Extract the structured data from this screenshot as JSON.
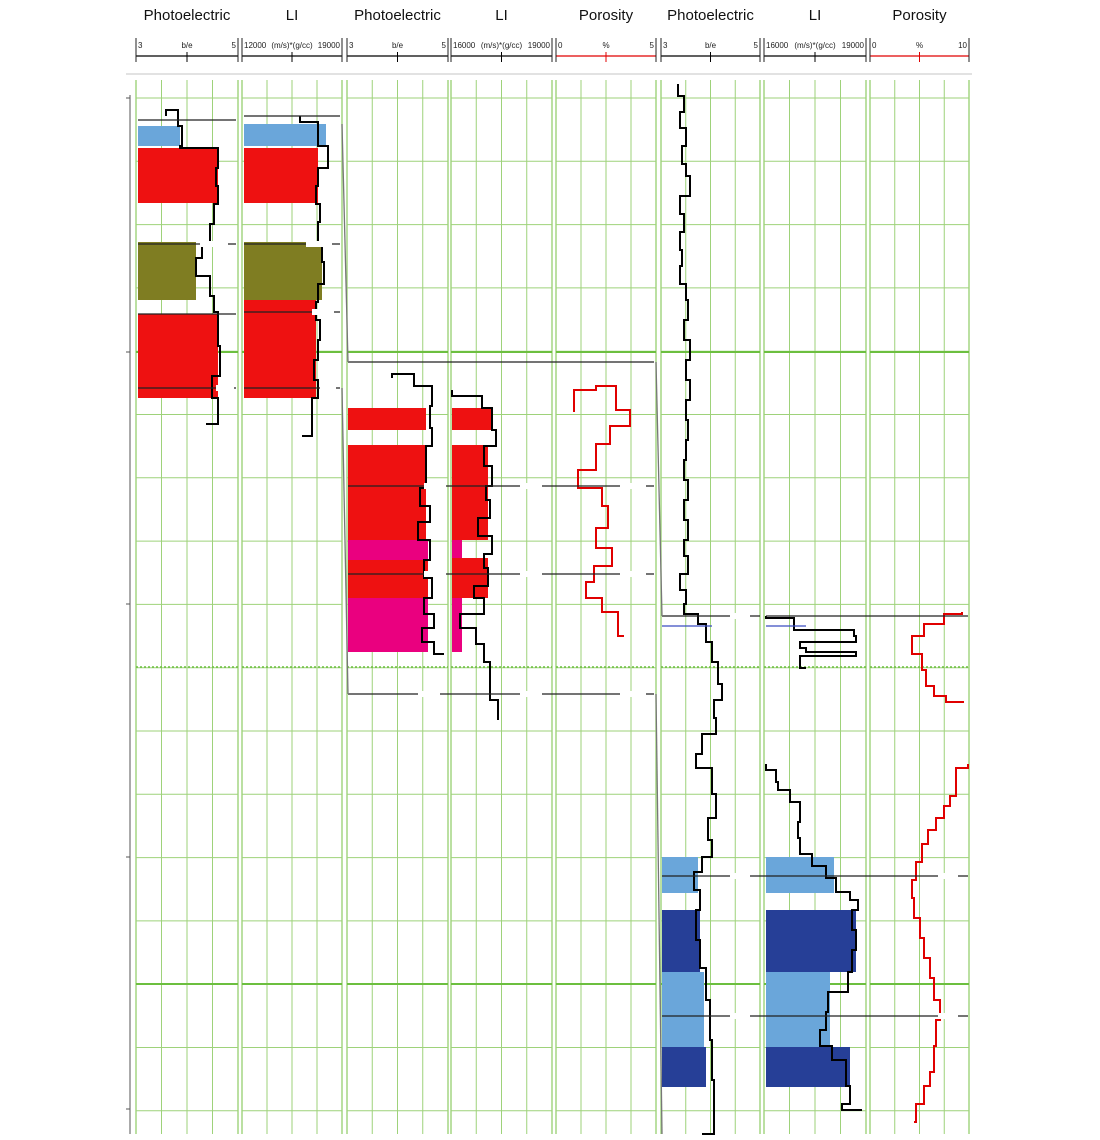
{
  "chart_data": {
    "type": "well-log-correlation",
    "grid": true,
    "wells": [
      {
        "id": "well-1",
        "tracks": [
          {
            "title": "Photoelectric",
            "curve_color": "#000000",
            "scale": {
              "min": "3",
              "unit": "b/e",
              "max": "5"
            }
          },
          {
            "title": "LI",
            "curve_color": "#000000",
            "scale": {
              "min": "12000",
              "unit": "(m/s)*(g/cc)",
              "max": "19000"
            }
          }
        ]
      },
      {
        "id": "well-2",
        "tracks": [
          {
            "title": "Photoelectric",
            "curve_color": "#000000",
            "scale": {
              "min": "3",
              "unit": "b/e",
              "max": "5"
            }
          },
          {
            "title": "LI",
            "curve_color": "#000000",
            "scale": {
              "min": "16000",
              "unit": "(m/s)*(g/cc)",
              "max": "19000"
            }
          },
          {
            "title": "Porosity",
            "curve_color": "#e00000",
            "scale": {
              "min": "0",
              "unit": "%",
              "max": "5"
            }
          }
        ]
      },
      {
        "id": "well-3",
        "tracks": [
          {
            "title": "Photoelectric",
            "curve_color": "#000000",
            "scale": {
              "min": "3",
              "unit": "b/e",
              "max": "5"
            }
          },
          {
            "title": "LI",
            "curve_color": "#000000",
            "scale": {
              "min": "16000",
              "unit": "(m/s)*(g/cc)",
              "max": "19000"
            }
          },
          {
            "title": "Porosity",
            "curve_color": "#e00000",
            "scale": {
              "min": "0",
              "unit": "%",
              "max": "10"
            }
          }
        ]
      }
    ],
    "facies_colors": {
      "light_blue": "#6aa6da",
      "red": "#ee1111",
      "olive": "#7f7d22",
      "magenta": "#ea007f",
      "dark_blue": "#263f97",
      "grid_green": "#9ed27a"
    }
  }
}
